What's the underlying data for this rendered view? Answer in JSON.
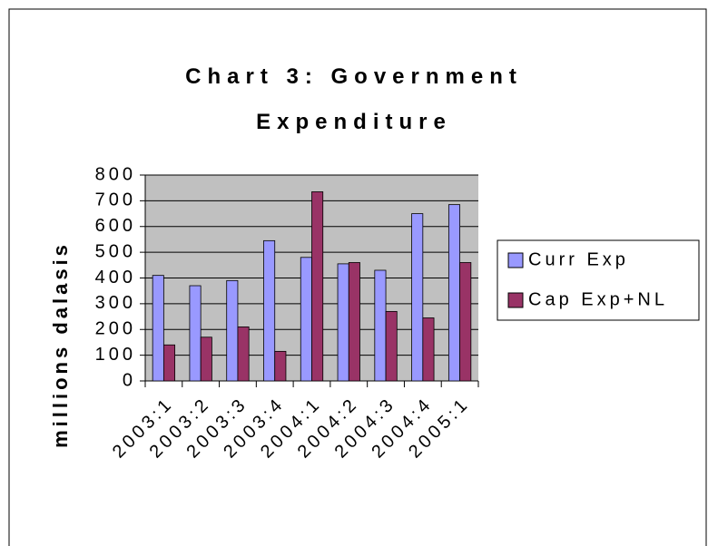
{
  "chart_data": {
    "type": "bar",
    "title": "Chart 3: Government Expenditure",
    "y_label": "millions dalasis",
    "categories": [
      "2003:1",
      "2003:2",
      "2003:3",
      "2003:4",
      "2004:1",
      "2004:2",
      "2004:3",
      "2004:4",
      "2005:1"
    ],
    "series": [
      {
        "name": "Curr Exp",
        "color": "#9999ff",
        "values": [
          410,
          370,
          390,
          545,
          480,
          455,
          430,
          650,
          685
        ]
      },
      {
        "name": "Cap Exp+NL",
        "color": "#993366",
        "values": [
          140,
          170,
          210,
          115,
          735,
          460,
          270,
          245,
          460
        ]
      }
    ],
    "ylim": [
      0,
      800
    ],
    "yticks": [
      0,
      100,
      200,
      300,
      400,
      500,
      600,
      700,
      800
    ],
    "grid": true,
    "legend": "right"
  }
}
